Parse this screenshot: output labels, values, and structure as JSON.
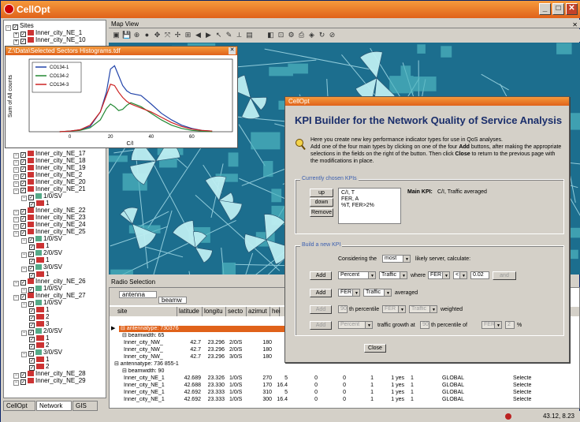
{
  "app": {
    "title": "CellOpt"
  },
  "tree": {
    "items": [
      {
        "label": "Sites",
        "level": 0
      },
      {
        "label": "Inner_city_NE_1",
        "level": 1
      },
      {
        "label": "Inner_city_NE_10",
        "level": 1
      },
      {
        "label": "Inner_city_NE_17",
        "level": 1
      },
      {
        "label": "Inner_city_NE_18",
        "level": 1
      },
      {
        "label": "Inner_city_NE_19",
        "level": 1
      },
      {
        "label": "Inner_city_NE_2",
        "level": 1
      },
      {
        "label": "Inner_city_NE_20",
        "level": 1
      },
      {
        "label": "Inner_city_NE_21",
        "level": 1
      },
      {
        "label": "1/0/SV",
        "level": 2
      },
      {
        "label": "1",
        "level": 3
      },
      {
        "label": "Inner_city_NE_22",
        "level": 1
      },
      {
        "label": "Inner_city_NE_23",
        "level": 1
      },
      {
        "label": "Inner_city_NE_24",
        "level": 1
      },
      {
        "label": "Inner_city_NE_25",
        "level": 1
      },
      {
        "label": "1/0/SV",
        "level": 2
      },
      {
        "label": "1",
        "level": 3
      },
      {
        "label": "2/0/SV",
        "level": 2
      },
      {
        "label": "1",
        "level": 3
      },
      {
        "label": "3/0/SV",
        "level": 2
      },
      {
        "label": "1",
        "level": 3
      },
      {
        "label": "Inner_city_NE_26",
        "level": 1
      },
      {
        "label": "1/0/SV",
        "level": 2
      },
      {
        "label": "Inner_city_NE_27",
        "level": 1
      },
      {
        "label": "1/0/SV",
        "level": 2
      },
      {
        "label": "1",
        "level": 3
      },
      {
        "label": "2",
        "level": 3
      },
      {
        "label": "3",
        "level": 3
      },
      {
        "label": "2/0/SV",
        "level": 2
      },
      {
        "label": "1",
        "level": 3
      },
      {
        "label": "2",
        "level": 3
      },
      {
        "label": "3/0/SV",
        "level": 2
      },
      {
        "label": "1",
        "level": 3
      },
      {
        "label": "2",
        "level": 3
      },
      {
        "label": "Inner_city_NE_28",
        "level": 1
      },
      {
        "label": "Inner_city_NE_29",
        "level": 1
      }
    ],
    "tabs": [
      "CellOpt",
      "Network",
      "GIS"
    ]
  },
  "histogram": {
    "title": "Z:\\Data\\Selected Sectors Histograms.tdf",
    "legend": [
      "CO134-1",
      "CO134-2",
      "CO134-3"
    ]
  },
  "chart_data": {
    "type": "line",
    "title": "",
    "xlabel": "C/I",
    "ylabel": "Sum of All counts",
    "xlim": [
      -20,
      80
    ],
    "xticks": [
      0,
      20,
      40,
      60
    ],
    "legend_position": "top-left",
    "series": [
      {
        "name": "CO134-1",
        "color": "#2244aa",
        "x": [
          -5,
          0,
          5,
          10,
          15,
          18,
          20,
          22,
          24,
          26,
          28,
          30,
          35,
          40,
          45,
          50,
          55,
          60,
          65,
          70
        ],
        "y": [
          0,
          1,
          3,
          8,
          30,
          60,
          95,
          100,
          85,
          70,
          62,
          58,
          55,
          42,
          28,
          18,
          10,
          5,
          2,
          1
        ]
      },
      {
        "name": "CO134-2",
        "color": "#228833",
        "x": [
          -5,
          0,
          5,
          10,
          15,
          18,
          20,
          22,
          24,
          26,
          28,
          30,
          35,
          40,
          45,
          50,
          55,
          60,
          65,
          70
        ],
        "y": [
          0,
          1,
          2,
          6,
          18,
          35,
          42,
          38,
          32,
          34,
          40,
          44,
          38,
          28,
          18,
          10,
          5,
          2,
          1,
          0
        ]
      },
      {
        "name": "CO134-3",
        "color": "#cc2222",
        "x": [
          -5,
          0,
          5,
          10,
          15,
          18,
          20,
          22,
          24,
          26,
          28,
          30,
          35,
          40,
          45,
          50,
          55,
          60,
          65,
          70
        ],
        "y": [
          0,
          1,
          3,
          10,
          30,
          55,
          72,
          70,
          60,
          52,
          46,
          42,
          36,
          30,
          22,
          14,
          8,
          4,
          2,
          1
        ]
      }
    ]
  },
  "map": {
    "title": "Map View"
  },
  "radio": {
    "title": "Radio Selection",
    "group_tags": [
      "antenna",
      "beamw"
    ],
    "columns": [
      "site",
      "latitude",
      "longitu",
      "secto",
      "azimut",
      "hei"
    ],
    "rows": [
      {
        "kind": "selected",
        "text": "antennatype: 730376"
      },
      {
        "kind": "sub",
        "text": "beamwidth: 65"
      },
      {
        "kind": "data",
        "cells": [
          "Inner_city_NW_",
          "42.7",
          "23.296",
          "2/0/S",
          "180",
          "",
          "",
          "",
          "",
          "",
          "",
          "",
          "",
          ""
        ]
      },
      {
        "kind": "data",
        "cells": [
          "Inner_city_NW_",
          "42.7",
          "23.296",
          "2/0/S",
          "180",
          "",
          "",
          "",
          "",
          "",
          "",
          "",
          "",
          ""
        ]
      },
      {
        "kind": "data",
        "cells": [
          "Inner_city_NW_",
          "42.7",
          "23.296",
          "3/0/S",
          "180",
          "",
          "",
          "",
          "",
          "",
          "",
          "",
          "",
          ""
        ]
      },
      {
        "kind": "group",
        "text": "antennatype: 736 855-1"
      },
      {
        "kind": "sub",
        "text": "beamwidth: 90"
      },
      {
        "kind": "data",
        "cells": [
          "Inner_city_NE_1",
          "42.689",
          "23.326",
          "1/0/S",
          "270",
          "5",
          "0",
          "0",
          "1",
          "1 yes",
          "1",
          "GLOBAL",
          "Selecte"
        ]
      },
      {
        "kind": "data",
        "cells": [
          "Inner_city_NE_1",
          "42.688",
          "23.330",
          "1/0/S",
          "170",
          "16.4",
          "0",
          "0",
          "1",
          "1 yes",
          "1",
          "GLOBAL",
          "Selecte"
        ]
      },
      {
        "kind": "data",
        "cells": [
          "Inner_city_NE_1",
          "42.692",
          "23.333",
          "1/0/S",
          "310",
          "5",
          "0",
          "0",
          "1",
          "1 yes",
          "1",
          "GLOBAL",
          "Selecte"
        ]
      },
      {
        "kind": "data",
        "cells": [
          "Inner_city_NE_1",
          "42.692",
          "23.333",
          "1/0/S",
          "300",
          "16.4",
          "0",
          "0",
          "1",
          "1 yes",
          "1",
          "GLOBAL",
          "Selecte"
        ]
      }
    ]
  },
  "status": {
    "coords": "43.12, 8.23"
  },
  "kpi": {
    "window_title": "CellOpt",
    "heading": "KPI Builder for the Network Quality of Service Analysis",
    "desc1": "Here you create new key performance indicator types for use in QoS analyses.",
    "desc2_pre": "Add one of the four main types by clicking on one of the four ",
    "desc2_bold": "Add",
    "desc2_post": " buttons, after making the appropriate selections in the fields on the right of the button. Then click ",
    "desc2_bold2": "Close",
    "desc2_end": " to return to the previous page with the modifications in place.",
    "current_legend": "Currently chosen KPIs",
    "btn_up": "up",
    "btn_down": "down",
    "btn_remove": "Remove",
    "kpi_list": [
      "C/I, T",
      "FER, A",
      "%T, FER>2%"
    ],
    "main_kpi_label": "Main KPI:",
    "main_kpi_value": "C/I, Traffic averaged",
    "build_legend": "Build a new KPI",
    "considering_pre": "Considering the",
    "considering_combo": "most",
    "considering_post": "likely server, calculate:",
    "row1": {
      "add": "Add",
      "c1": "Percent",
      "c2": "Traffic",
      "where": "where",
      "c3": "FER",
      "c4": "<",
      "val": "0.02",
      "and": "and"
    },
    "row2": {
      "add": "Add",
      "c1": "FER",
      "c2": "Traffic",
      "text": "averaged"
    },
    "row3": {
      "add": "Add",
      "val": "90",
      "text": "th percentile",
      "c1": "FER",
      "c2": "Traffic",
      "text2": "weighted"
    },
    "row4": {
      "add": "Add",
      "c1": "Percent",
      "text": "traffic growth at",
      "val": "90",
      "text2": "th percentile of",
      "c2": "FER",
      "val2": "2",
      "pct": "%"
    },
    "close": "Close"
  }
}
